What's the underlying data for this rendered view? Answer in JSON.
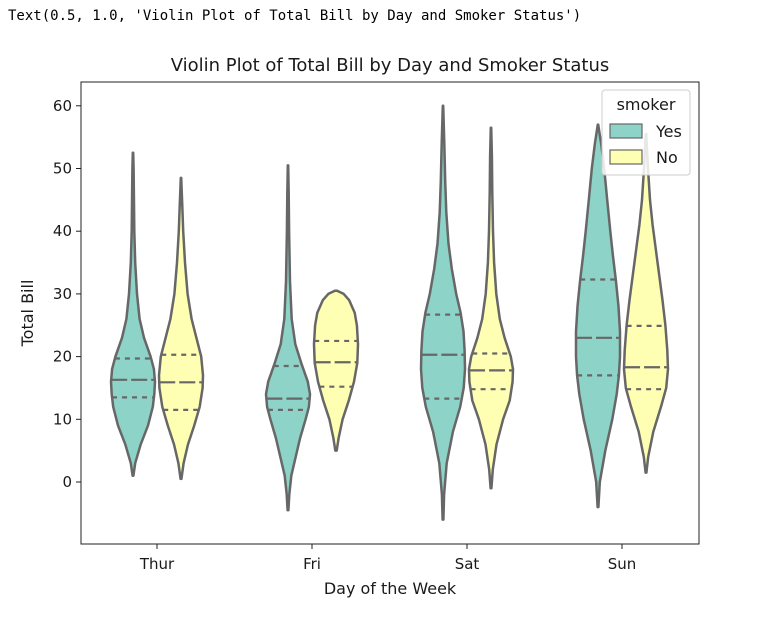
{
  "output_repr": "Text(0.5, 1.0, 'Violin Plot of Total Bill by Day and Smoker Status')",
  "chart_data": {
    "type": "violin",
    "title": "Violin Plot of Total Bill by Day and Smoker Status",
    "xlabel": "Day of the Week",
    "ylabel": "Total Bill",
    "categories": [
      "Thur",
      "Fri",
      "Sat",
      "Sun"
    ],
    "ylim": [
      -10,
      64
    ],
    "yticks": [
      0,
      10,
      20,
      30,
      40,
      50,
      60
    ],
    "grid": false,
    "legend": {
      "title": "smoker",
      "placement": "top-right"
    },
    "inner": "quartile",
    "series": [
      {
        "name": "Yes",
        "color": "#8dd3c7",
        "violins": [
          {
            "category": "Thur",
            "min": 1,
            "max": 52.5,
            "q1": 13.5,
            "median": 16.3,
            "q3": 19.7,
            "profile": [
              [
                1,
                0.02
              ],
              [
                3,
                0.1
              ],
              [
                6,
                0.35
              ],
              [
                9,
                0.68
              ],
              [
                12,
                0.9
              ],
              [
                14,
                0.97
              ],
              [
                16,
                1.0
              ],
              [
                18,
                0.95
              ],
              [
                20,
                0.8
              ],
              [
                23,
                0.5
              ],
              [
                26,
                0.3
              ],
              [
                30,
                0.18
              ],
              [
                35,
                0.1
              ],
              [
                40,
                0.06
              ],
              [
                46,
                0.04
              ],
              [
                50,
                0.025
              ],
              [
                52.5,
                0.01
              ]
            ]
          },
          {
            "category": "Fri",
            "min": -4.5,
            "max": 50.5,
            "q1": 11.5,
            "median": 13.3,
            "q3": 18.5,
            "profile": [
              [
                -4.5,
                0.02
              ],
              [
                -2,
                0.06
              ],
              [
                1,
                0.15
              ],
              [
                4,
                0.35
              ],
              [
                7,
                0.55
              ],
              [
                10,
                0.8
              ],
              [
                12,
                0.95
              ],
              [
                14,
                1.0
              ],
              [
                16,
                0.9
              ],
              [
                19,
                0.6
              ],
              [
                22,
                0.33
              ],
              [
                26,
                0.17
              ],
              [
                32,
                0.09
              ],
              [
                40,
                0.05
              ],
              [
                46,
                0.03
              ],
              [
                50.5,
                0.01
              ]
            ]
          },
          {
            "category": "Sat",
            "min": -6,
            "max": 60,
            "q1": 13.3,
            "median": 20.3,
            "q3": 26.7,
            "profile": [
              [
                -6,
                0.02
              ],
              [
                -2,
                0.05
              ],
              [
                3,
                0.17
              ],
              [
                8,
                0.45
              ],
              [
                12,
                0.78
              ],
              [
                15,
                0.94
              ],
              [
                18,
                1.0
              ],
              [
                21,
                0.98
              ],
              [
                24,
                0.93
              ],
              [
                27,
                0.8
              ],
              [
                30,
                0.6
              ],
              [
                34,
                0.4
              ],
              [
                38,
                0.25
              ],
              [
                43,
                0.15
              ],
              [
                48,
                0.1
              ],
              [
                54,
                0.06
              ],
              [
                60,
                0.01
              ]
            ]
          },
          {
            "category": "Sun",
            "min": -4,
            "max": 57,
            "q1": 17.0,
            "median": 23.0,
            "q3": 32.3,
            "profile": [
              [
                -4,
                0.02
              ],
              [
                0,
                0.08
              ],
              [
                5,
                0.33
              ],
              [
                10,
                0.65
              ],
              [
                14,
                0.85
              ],
              [
                17,
                0.95
              ],
              [
                20,
                1.0
              ],
              [
                24,
                1.0
              ],
              [
                28,
                0.93
              ],
              [
                32,
                0.82
              ],
              [
                36,
                0.68
              ],
              [
                40,
                0.56
              ],
              [
                45,
                0.42
              ],
              [
                50,
                0.28
              ],
              [
                54,
                0.14
              ],
              [
                57,
                0.01
              ]
            ]
          }
        ]
      },
      {
        "name": "No",
        "color": "#ffffb3",
        "violins": [
          {
            "category": "Thur",
            "min": 0.5,
            "max": 48.5,
            "q1": 11.5,
            "median": 15.9,
            "q3": 20.3,
            "profile": [
              [
                0.5,
                0.02
              ],
              [
                3,
                0.12
              ],
              [
                6,
                0.32
              ],
              [
                9,
                0.6
              ],
              [
                12,
                0.85
              ],
              [
                15,
                0.98
              ],
              [
                17,
                1.0
              ],
              [
                20,
                0.92
              ],
              [
                23,
                0.7
              ],
              [
                26,
                0.48
              ],
              [
                30,
                0.3
              ],
              [
                35,
                0.18
              ],
              [
                40,
                0.1
              ],
              [
                44,
                0.06
              ],
              [
                48.5,
                0.01
              ]
            ]
          },
          {
            "category": "Fri",
            "min": 5,
            "max": 30.5,
            "q1": 15.2,
            "median": 19.1,
            "q3": 22.5,
            "profile": [
              [
                5,
                0.03
              ],
              [
                7,
                0.12
              ],
              [
                10,
                0.3
              ],
              [
                13,
                0.58
              ],
              [
                16,
                0.82
              ],
              [
                19,
                0.97
              ],
              [
                22,
                1.0
              ],
              [
                25,
                0.95
              ],
              [
                27,
                0.85
              ],
              [
                29,
                0.6
              ],
              [
                30,
                0.35
              ],
              [
                30.5,
                0.05
              ]
            ]
          },
          {
            "category": "Sat",
            "min": -1,
            "max": 56.5,
            "q1": 14.8,
            "median": 17.8,
            "q3": 20.5,
            "profile": [
              [
                -1,
                0.02
              ],
              [
                2,
                0.08
              ],
              [
                6,
                0.25
              ],
              [
                10,
                0.55
              ],
              [
                13,
                0.85
              ],
              [
                16,
                0.98
              ],
              [
                18,
                1.0
              ],
              [
                20,
                0.9
              ],
              [
                23,
                0.62
              ],
              [
                26,
                0.4
              ],
              [
                30,
                0.24
              ],
              [
                35,
                0.14
              ],
              [
                40,
                0.09
              ],
              [
                46,
                0.06
              ],
              [
                52,
                0.04
              ],
              [
                56.5,
                0.01
              ]
            ]
          },
          {
            "category": "Sun",
            "min": 1.5,
            "max": 55.5,
            "q1": 14.8,
            "median": 18.3,
            "q3": 24.9,
            "profile": [
              [
                1.5,
                0.02
              ],
              [
                4,
                0.1
              ],
              [
                8,
                0.33
              ],
              [
                12,
                0.68
              ],
              [
                15,
                0.92
              ],
              [
                18,
                1.0
              ],
              [
                21,
                0.97
              ],
              [
                25,
                0.88
              ],
              [
                29,
                0.75
              ],
              [
                33,
                0.6
              ],
              [
                37,
                0.45
              ],
              [
                41,
                0.3
              ],
              [
                45,
                0.18
              ],
              [
                50,
                0.09
              ],
              [
                55.5,
                0.01
              ]
            ]
          }
        ]
      }
    ]
  }
}
